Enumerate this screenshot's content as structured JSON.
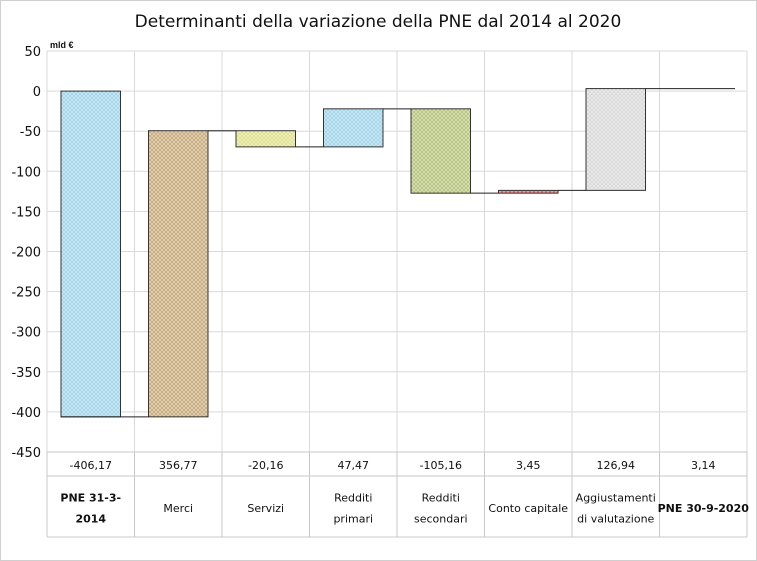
{
  "chart_data": {
    "type": "bar",
    "title": "Determinanti della variazione della PNE dal 2014 al 2020",
    "unit": "mld €",
    "ylim": [
      -450,
      50
    ],
    "yticks": [
      50,
      0,
      -50,
      -100,
      -150,
      -200,
      -250,
      -300,
      -350,
      -400,
      -450
    ],
    "grid": true,
    "categories": [
      {
        "lines": [
          "PNE 31-3-",
          "2014"
        ],
        "bold": true
      },
      {
        "lines": [
          "Merci"
        ],
        "bold": false
      },
      {
        "lines": [
          "Servizi"
        ],
        "bold": false
      },
      {
        "lines": [
          "Redditi",
          "primari"
        ],
        "bold": false
      },
      {
        "lines": [
          "Redditi",
          "secondari"
        ],
        "bold": false
      },
      {
        "lines": [
          "Conto capitale"
        ],
        "bold": false
      },
      {
        "lines": [
          "Aggiustamenti",
          "di valutazione"
        ],
        "bold": false
      },
      {
        "lines": [
          "PNE 30-9-2020"
        ],
        "bold": true
      }
    ],
    "value_labels": [
      "-406,17",
      "356,77",
      "-20,16",
      "47,47",
      "-105,16",
      "3,45",
      "126,94",
      "3,14"
    ],
    "values": [
      -406.17,
      356.77,
      -20.16,
      47.47,
      -105.16,
      3.45,
      126.94,
      3.14
    ],
    "bar_colors": [
      "#9fd3e8",
      "#c7a97a",
      "#dfe08a",
      "#9fd3e8",
      "#b4c47a",
      "#e06060",
      "#d8d8d8",
      "#ffffff"
    ],
    "bar_patterns": [
      "dots",
      "dots",
      "dots",
      "dots",
      "dots",
      "dots",
      "dots",
      "none"
    ]
  }
}
